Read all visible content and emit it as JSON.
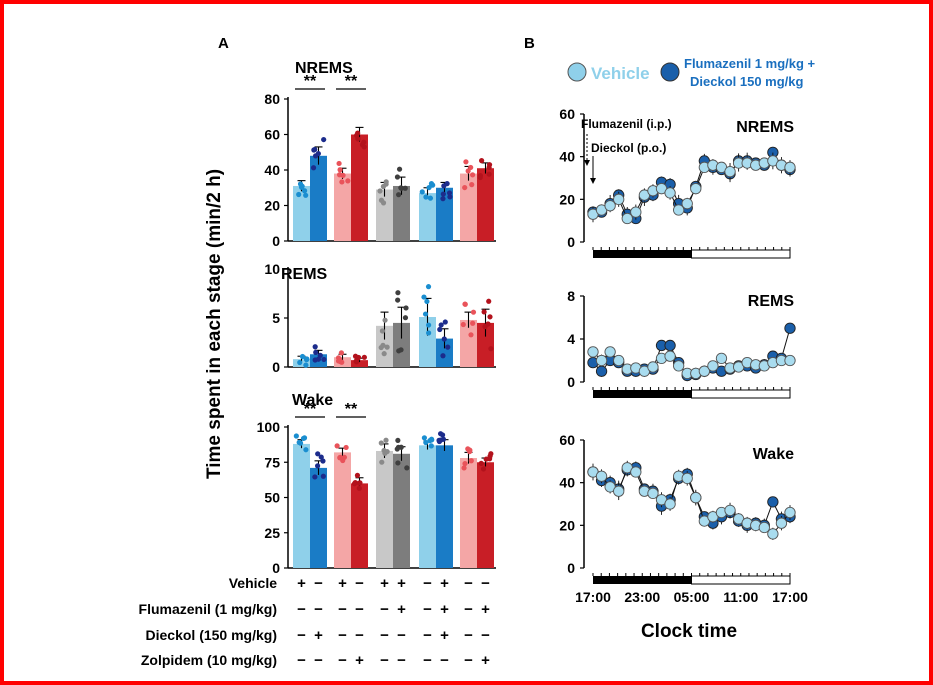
{
  "panel_a": {
    "label": "A",
    "ylabel": "Time spent in each stage (min/2 h)",
    "groups": [
      {
        "dark": "#1a7cc6",
        "light": "#8fd0ea",
        "dotDark": "#1c2c8c",
        "dotLight": "#1a8ed0"
      },
      {
        "dark": "#c81e26",
        "light": "#f4a6a6",
        "dotDark": "#b3121c",
        "dotLight": "#e9535a"
      },
      {
        "dark": "#7d7d7d",
        "light": "#c8c8c8",
        "dotDark": "#3f3f3f",
        "dotLight": "#8a8a8a"
      },
      {
        "dark": "#1a7cc6",
        "light": "#8fd0ea",
        "dotDark": "#1c2c8c",
        "dotLight": "#1a8ed0"
      },
      {
        "dark": "#c81e26",
        "light": "#f4a6a6",
        "dotDark": "#b3121c",
        "dotLight": "#e9535a"
      }
    ],
    "panels": [
      {
        "title": "NREMS",
        "ylim": [
          0,
          80
        ],
        "ticks": [
          "0",
          "20",
          "40",
          "60",
          "80"
        ],
        "values": [
          [
            31,
            48
          ],
          [
            38,
            60
          ],
          [
            29,
            31
          ],
          [
            27,
            30
          ],
          [
            38,
            41
          ]
        ],
        "errors": [
          [
            3,
            5
          ],
          [
            3,
            4
          ],
          [
            4,
            5
          ],
          [
            3,
            3
          ],
          [
            4,
            3
          ]
        ],
        "sig": [
          "**",
          "**"
        ]
      },
      {
        "title": "REMS",
        "ylim": [
          0,
          10
        ],
        "ticks": [
          "0",
          "5",
          "10"
        ],
        "values": [
          [
            0.8,
            1.3
          ],
          [
            1.0,
            0.7
          ],
          [
            4.2,
            4.5
          ],
          [
            5.1,
            2.9
          ],
          [
            4.8,
            4.5
          ]
        ],
        "errors": [
          [
            0.3,
            0.4
          ],
          [
            0.3,
            0.2
          ],
          [
            1.4,
            1.6
          ],
          [
            1.9,
            1.0
          ],
          [
            0.8,
            1.4
          ]
        ],
        "sig": []
      },
      {
        "title": "Wake",
        "ylim": [
          0,
          100
        ],
        "ticks": [
          "0",
          "25",
          "50",
          "75",
          "100"
        ],
        "values": [
          [
            88,
            71
          ],
          [
            82,
            60
          ],
          [
            83,
            81
          ],
          [
            87,
            87
          ],
          [
            78,
            75
          ]
        ],
        "errors": [
          [
            3,
            5
          ],
          [
            3,
            4
          ],
          [
            5,
            5
          ],
          [
            3,
            4
          ],
          [
            4,
            3
          ]
        ],
        "sig": [
          "**",
          "**"
        ]
      }
    ],
    "conditions": [
      {
        "label": "Vehicle",
        "marks": [
          "+",
          "−",
          "+",
          "−",
          "+",
          "+",
          "−",
          "+",
          "−",
          "−"
        ]
      },
      {
        "label": "Flumazenil (1 mg/kg)",
        "marks": [
          "−",
          "−",
          "−",
          "−",
          "−",
          "+",
          "−",
          "+",
          "−",
          "+"
        ]
      },
      {
        "label": "Dieckol (150 mg/kg)",
        "marks": [
          "−",
          "+",
          "−",
          "−",
          "−",
          "−",
          "−",
          "+",
          "−",
          "−"
        ]
      },
      {
        "label": "Zolpidem (10 mg/kg)",
        "marks": [
          "−",
          "−",
          "−",
          "+",
          "−",
          "−",
          "−",
          "−",
          "−",
          "+"
        ]
      }
    ]
  },
  "panel_b": {
    "label": "B",
    "legend": [
      {
        "label": "Vehicle",
        "color": "#8fd0ea",
        "textColor": "#8fd0ea"
      },
      {
        "label": "Flumazenil 1 mg/kg +",
        "label2": "Dieckol  150 mg/kg",
        "color": "#1a5faa",
        "textColor": "#1a6fbf"
      }
    ],
    "annotations": [
      "Flumazenil (i.p.)",
      "Dieckol (p.o.)"
    ],
    "xlabel": "Clock time",
    "xticks": [
      "17:00",
      "23:00",
      "05:00",
      "11:00",
      "17:00"
    ],
    "panels": [
      {
        "title": "NREMS",
        "ylim": [
          0,
          60
        ],
        "ticks": [
          "0",
          "20",
          "40",
          "60"
        ],
        "vehicle": [
          13,
          15,
          17,
          20,
          11,
          14,
          22,
          24,
          25,
          23,
          15,
          18,
          25,
          35,
          36,
          35,
          33,
          37,
          37,
          36,
          37,
          38,
          36,
          35
        ],
        "treated": [
          14,
          14,
          18,
          22,
          13,
          11,
          21,
          22,
          28,
          27,
          18,
          16,
          26,
          38,
          35,
          34,
          32,
          38,
          38,
          37,
          36,
          42,
          36,
          34
        ]
      },
      {
        "title": "REMS",
        "ylim": [
          0,
          8
        ],
        "ticks": [
          "0",
          "4",
          "8"
        ],
        "vehicle": [
          2.8,
          2.0,
          2.8,
          2.0,
          1.2,
          1.3,
          1.0,
          1.4,
          2.2,
          2.4,
          1.5,
          0.8,
          0.8,
          1.0,
          1.5,
          2.2,
          1.3,
          1.4,
          1.8,
          1.6,
          1.5,
          1.8,
          2.0,
          2.0
        ],
        "treated": [
          1.8,
          1.0,
          2.0,
          1.8,
          1.0,
          1.0,
          1.2,
          1.2,
          3.4,
          3.4,
          1.8,
          0.6,
          0.7,
          1.0,
          1.3,
          1.0,
          1.2,
          1.5,
          1.5,
          1.3,
          1.6,
          2.4,
          2.2,
          5.0
        ]
      },
      {
        "title": "Wake",
        "ylim": [
          0,
          60
        ],
        "ticks": [
          "0",
          "20",
          "40",
          "60"
        ],
        "vehicle": [
          45,
          43,
          38,
          36,
          47,
          45,
          36,
          35,
          32,
          30,
          43,
          42,
          33,
          22,
          24,
          26,
          27,
          23,
          21,
          20,
          19,
          16,
          21,
          26
        ],
        "treated": [
          45,
          41,
          40,
          37,
          46,
          47,
          37,
          36,
          29,
          32,
          42,
          44,
          33,
          24,
          21,
          24,
          26,
          22,
          20,
          21,
          20,
          31,
          23,
          24
        ]
      }
    ]
  }
}
